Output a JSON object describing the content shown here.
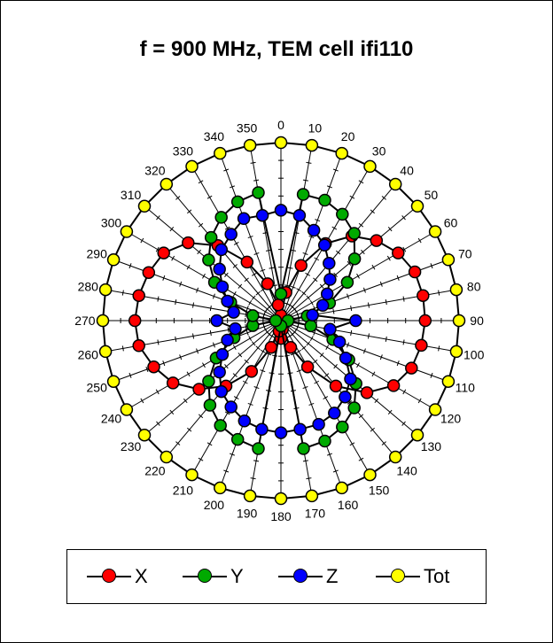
{
  "title": "f = 900 MHz, TEM cell ifi110",
  "chart_data": {
    "type": "polar-line",
    "title": "f = 900 MHz, TEM cell ifi110",
    "angles": [
      0,
      10,
      20,
      30,
      40,
      50,
      60,
      70,
      80,
      90,
      100,
      110,
      120,
      130,
      140,
      150,
      160,
      170,
      180,
      190,
      200,
      210,
      220,
      230,
      240,
      250,
      260,
      270,
      280,
      290,
      300,
      310,
      320,
      330,
      340,
      350
    ],
    "angle_labels": [
      "0",
      "10",
      "20",
      "30",
      "40",
      "50",
      "60",
      "70",
      "80",
      "90",
      "100",
      "110",
      "120",
      "130",
      "140",
      "150",
      "160",
      "170",
      "180",
      "190",
      "200",
      "210",
      "220",
      "230",
      "240",
      "250",
      "260",
      "270",
      "280",
      "290",
      "300",
      "310",
      "320",
      "330",
      "340",
      "350"
    ],
    "r_range": [
      0,
      1
    ],
    "series": [
      {
        "name": "X",
        "color": "#ff0000",
        "values": [
          0.03,
          0.16,
          0.33,
          0.5,
          0.62,
          0.7,
          0.76,
          0.8,
          0.81,
          0.81,
          0.8,
          0.78,
          0.73,
          0.63,
          0.48,
          0.3,
          0.16,
          0.05,
          0.1,
          0.06,
          0.16,
          0.33,
          0.48,
          0.6,
          0.7,
          0.76,
          0.81,
          0.82,
          0.81,
          0.79,
          0.76,
          0.68,
          0.55,
          0.38,
          0.22,
          0.09
        ]
      },
      {
        "name": "Y",
        "color": "#00aa00",
        "values": [
          0.15,
          0.72,
          0.72,
          0.69,
          0.64,
          0.54,
          0.43,
          0.29,
          0.15,
          0.04,
          0.17,
          0.31,
          0.44,
          0.55,
          0.64,
          0.69,
          0.72,
          0.73,
          0.03,
          0.73,
          0.71,
          0.68,
          0.62,
          0.53,
          0.42,
          0.28,
          0.16,
          0.03,
          0.16,
          0.3,
          0.43,
          0.53,
          0.61,
          0.67,
          0.71,
          0.73
        ]
      },
      {
        "name": "Z",
        "color": "#0000ff",
        "values": [
          0.62,
          0.6,
          0.54,
          0.49,
          0.42,
          0.36,
          0.3,
          0.25,
          0.18,
          0.42,
          0.28,
          0.35,
          0.42,
          0.51,
          0.56,
          0.6,
          0.62,
          0.62,
          0.63,
          0.62,
          0.6,
          0.56,
          0.52,
          0.45,
          0.38,
          0.32,
          0.26,
          0.36,
          0.27,
          0.32,
          0.38,
          0.45,
          0.52,
          0.56,
          0.61,
          0.6
        ]
      },
      {
        "name": "Tot",
        "color": "#ffff00",
        "values": [
          1,
          1,
          1,
          1,
          1,
          1,
          1,
          1,
          1,
          1,
          1,
          1,
          1,
          1,
          1,
          1,
          1,
          1,
          1,
          1,
          1,
          1,
          1,
          1,
          1,
          1,
          1,
          1,
          1,
          1,
          1,
          1,
          1,
          1,
          1,
          1
        ]
      }
    ],
    "legend": {
      "position": "bottom",
      "entries": [
        "X",
        "Y",
        "Z",
        "Tot"
      ]
    },
    "grid": true
  }
}
